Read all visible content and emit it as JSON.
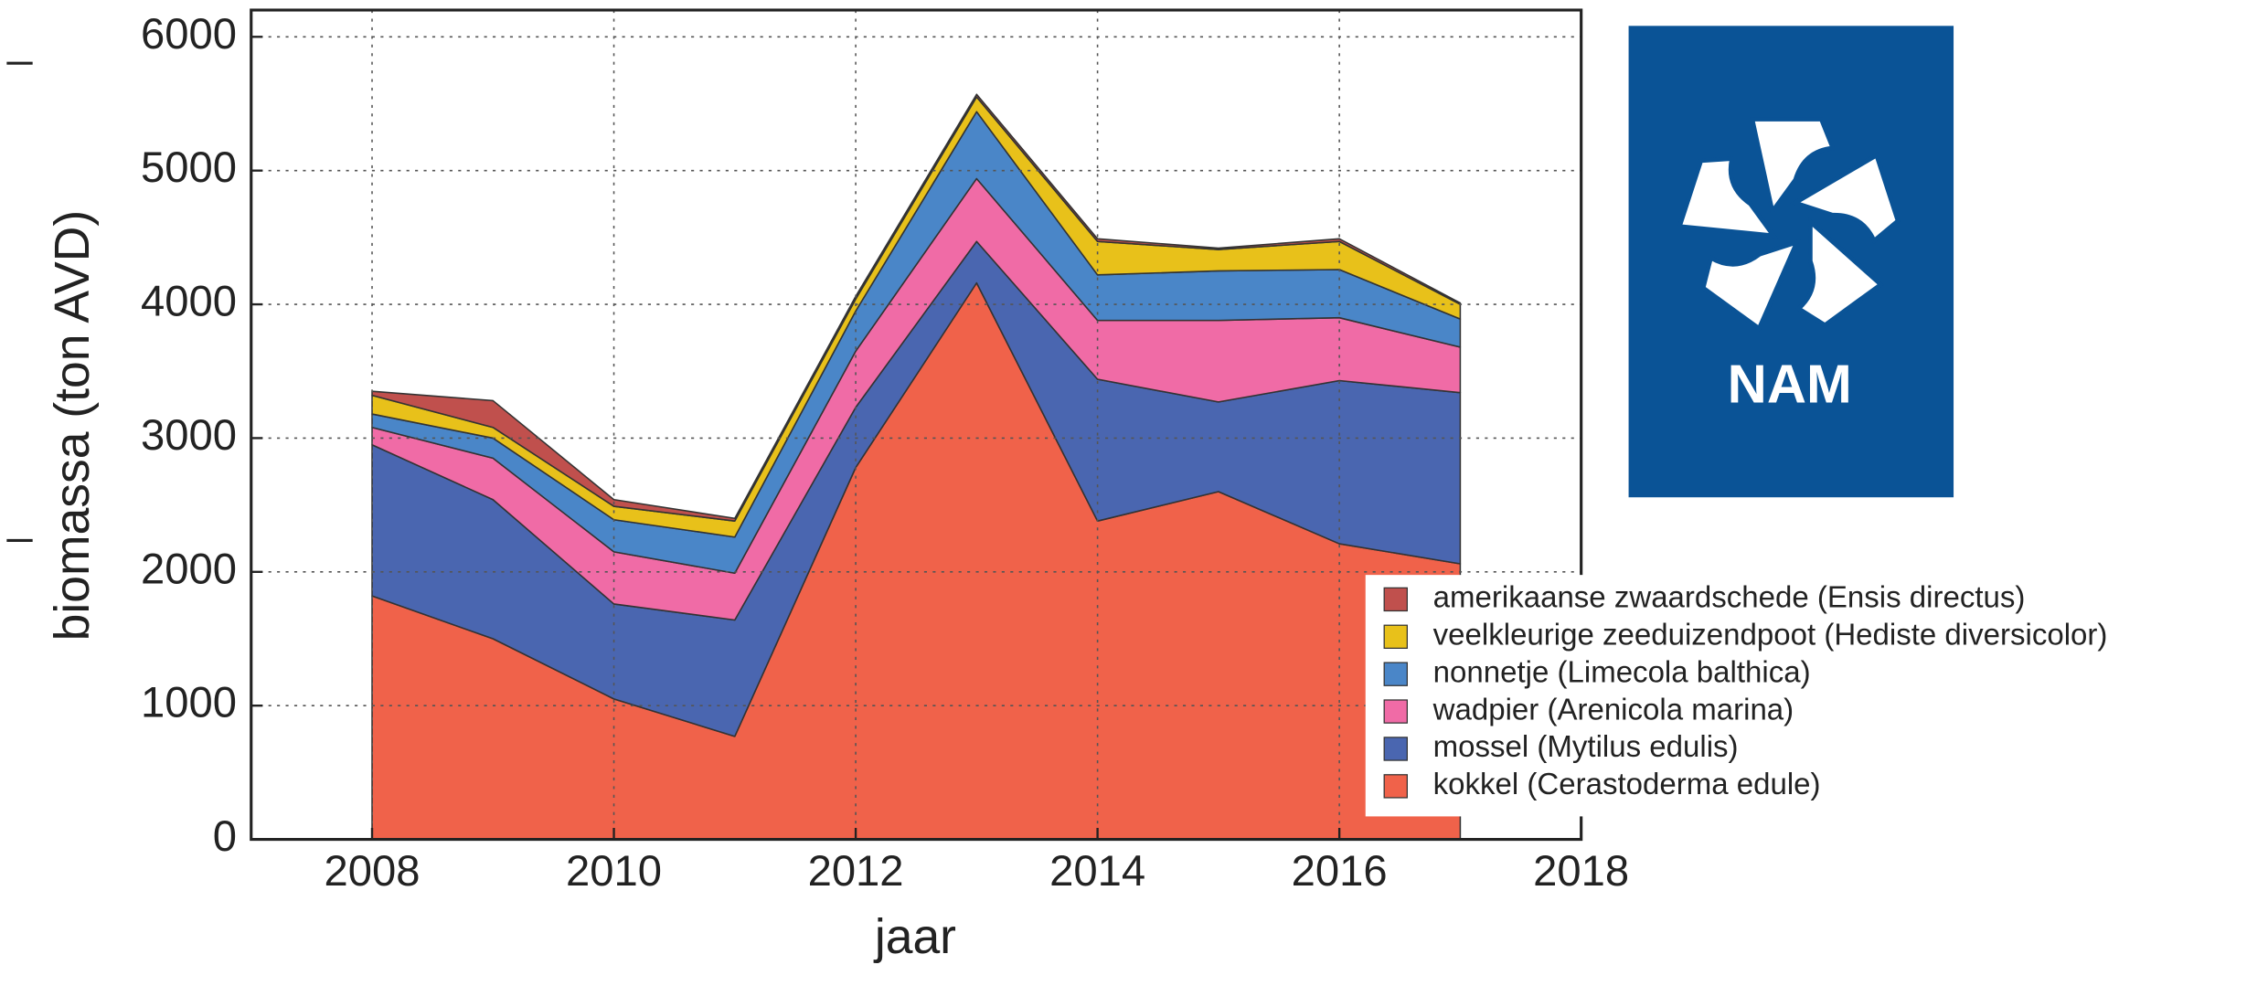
{
  "chart_data": {
    "type": "stacked-area",
    "xlabel": "jaar",
    "ylabel": "biomassa (ton AVD)",
    "x": [
      2008,
      2009,
      2010,
      2011,
      2012,
      2013,
      2014,
      2015,
      2016,
      2017
    ],
    "series": [
      {
        "name": "kokkel (Cerastoderma edule)",
        "color": "#f0624a",
        "values": [
          1820,
          1500,
          1050,
          770,
          2780,
          4160,
          2380,
          2600,
          2210,
          2060
        ]
      },
      {
        "name": "mossel (Mytilus edulis)",
        "color": "#4a66b0",
        "values": [
          1130,
          1040,
          710,
          870,
          450,
          310,
          1060,
          670,
          1220,
          1280
        ]
      },
      {
        "name": "wadpier (Arenicola marina)",
        "color": "#f06ba6",
        "values": [
          130,
          310,
          390,
          350,
          420,
          470,
          440,
          610,
          470,
          340
        ]
      },
      {
        "name": "nonnetje (Limecola balthica)",
        "color": "#4a86c8",
        "values": [
          100,
          150,
          240,
          270,
          300,
          500,
          340,
          370,
          360,
          210
        ]
      },
      {
        "name": "veelkleurige zeeduizendpoot (Hediste diversicolor)",
        "color": "#e8c11a",
        "values": [
          140,
          80,
          100,
          120,
          90,
          110,
          250,
          160,
          210,
          110
        ]
      },
      {
        "name": "amerikaanse zwaardschede (Ensis directus)",
        "color": "#c0504d",
        "values": [
          30,
          200,
          50,
          20,
          20,
          20,
          20,
          10,
          20,
          10
        ]
      }
    ],
    "xlim": [
      2007,
      2018
    ],
    "xticks": [
      2008,
      2010,
      2012,
      2014,
      2016,
      2018
    ],
    "ylim": [
      0,
      6200
    ],
    "yticks": [
      0,
      1000,
      2000,
      3000,
      4000,
      5000,
      6000
    ],
    "grid": true,
    "legend": "lower right"
  },
  "logo": {
    "text": "NAM"
  }
}
